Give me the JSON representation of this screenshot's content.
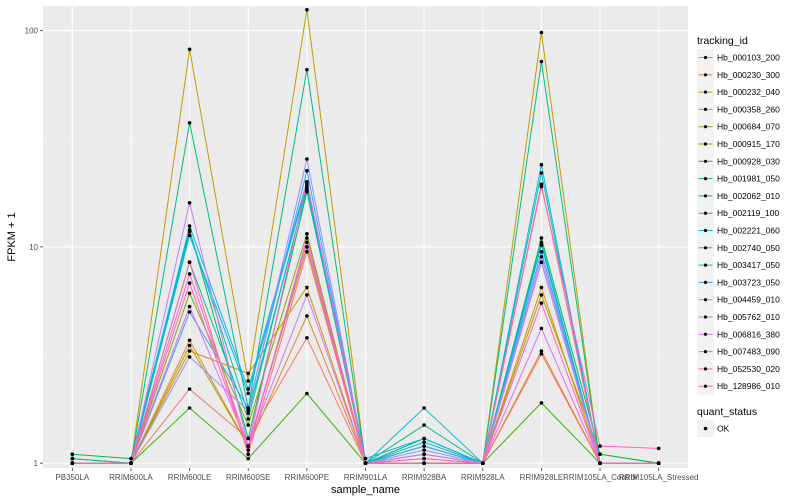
{
  "chart_data": {
    "type": "line",
    "xlabel": "sample_name",
    "ylabel": "FPKM + 1",
    "y_scale": "log10",
    "ylim": [
      0.95,
      130
    ],
    "y_ticks": [
      1,
      10,
      100
    ],
    "y_tick_labels": [
      "1",
      "10",
      "100"
    ],
    "grid": true,
    "legend_position": "right",
    "categories": [
      "PB350LA",
      "RRIM600LA",
      "RRIM600LE",
      "RRIM600SE",
      "RRIM600PE",
      "RRIM901LA",
      "RRIM928BA",
      "RRIM928LA",
      "RRIM928LE",
      "RRIM105LA_Control",
      "RRIM105LA_Stressed"
    ],
    "color_legend_title": "tracking_id",
    "series": [
      {
        "name": "Hb_000103_200",
        "color": "#F8766D",
        "values": [
          1.0,
          1.0,
          2.2,
          1.3,
          3.8,
          1.0,
          1.1,
          1.0,
          3.2,
          1.0,
          1.0
        ]
      },
      {
        "name": "Hb_000230_300",
        "color": "#EA8331",
        "values": [
          1.0,
          1.0,
          3.7,
          1.2,
          4.8,
          1.0,
          1.0,
          1.0,
          3.3,
          1.0,
          1.0
        ]
      },
      {
        "name": "Hb_000232_040",
        "color": "#D89000",
        "values": [
          1.0,
          1.0,
          3.3,
          2.6,
          6.5,
          1.0,
          1.0,
          1.0,
          6.5,
          1.0,
          1.0
        ]
      },
      {
        "name": "Hb_000358_260",
        "color": "#C09B00",
        "values": [
          1.0,
          1.0,
          82,
          2.4,
          125,
          1.0,
          1.0,
          1.0,
          98,
          1.0,
          1.0
        ]
      },
      {
        "name": "Hb_000684_070",
        "color": "#A3A500",
        "values": [
          1.05,
          1.0,
          3.5,
          1.2,
          10.0,
          1.0,
          1.0,
          1.0,
          6.0,
          1.1,
          1.0
        ]
      },
      {
        "name": "Hb_000915_170",
        "color": "#7CAE00",
        "values": [
          1.05,
          1.0,
          6.1,
          1.5,
          11.5,
          1.0,
          1.1,
          1.0,
          8.5,
          1.0,
          1.0
        ]
      },
      {
        "name": "Hb_000928_030",
        "color": "#39B600",
        "values": [
          1.0,
          1.0,
          1.8,
          1.05,
          2.1,
          1.0,
          1.0,
          1.0,
          1.9,
          1.0,
          1.0
        ]
      },
      {
        "name": "Hb_001981_050",
        "color": "#00BB4E",
        "values": [
          1.1,
          1.05,
          12.0,
          1.3,
          18.0,
          1.0,
          1.3,
          1.0,
          11.0,
          1.1,
          1.0
        ]
      },
      {
        "name": "Hb_002062_010",
        "color": "#00BF7D",
        "values": [
          1.0,
          1.0,
          37.5,
          1.8,
          66,
          1.0,
          1.5,
          1.0,
          72,
          1.0,
          1.0
        ]
      },
      {
        "name": "Hb_002119_100",
        "color": "#00C1A3",
        "values": [
          1.05,
          1.0,
          8.5,
          1.6,
          19.0,
          1.0,
          1.2,
          1.0,
          10.5,
          1.0,
          1.0
        ]
      },
      {
        "name": "Hb_002221_060",
        "color": "#00BFC4",
        "values": [
          1.0,
          1.0,
          11.8,
          1.7,
          18.5,
          1.0,
          1.25,
          1.0,
          22,
          1.0,
          1.0
        ]
      },
      {
        "name": "Hb_002740_050",
        "color": "#00BAE0",
        "values": [
          1.0,
          1.0,
          12.5,
          2.2,
          20,
          1.0,
          1.8,
          1.0,
          24,
          1.0,
          1.0
        ]
      },
      {
        "name": "Hb_003417_050",
        "color": "#00B0F6",
        "values": [
          1.0,
          1.0,
          11.3,
          2.1,
          19.5,
          1.05,
          1.3,
          1.0,
          10.2,
          1.0,
          1.0
        ]
      },
      {
        "name": "Hb_003723_050",
        "color": "#35A2FF",
        "values": [
          1.0,
          1.0,
          5.0,
          1.8,
          22.5,
          1.0,
          1.2,
          1.0,
          9.5,
          1.0,
          1.0
        ]
      },
      {
        "name": "Hb_004459_010",
        "color": "#9590FF",
        "values": [
          1.0,
          1.0,
          3.1,
          1.75,
          25.5,
          1.0,
          1.15,
          1.0,
          9.0,
          1.0,
          1.0
        ]
      },
      {
        "name": "Hb_005762_010",
        "color": "#C77CFF",
        "values": [
          1.0,
          1.0,
          16.0,
          1.2,
          6.0,
          1.0,
          1.1,
          1.0,
          8.5,
          1.0,
          1.0
        ]
      },
      {
        "name": "Hb_006816_380",
        "color": "#E76BF3",
        "values": [
          1.0,
          1.0,
          5.3,
          1.2,
          10.5,
          1.0,
          1.05,
          1.0,
          4.2,
          1.0,
          1.0
        ]
      },
      {
        "name": "Hb_007483_090",
        "color": "#FA62DB",
        "values": [
          1.0,
          1.0,
          7.5,
          1.2,
          20.0,
          1.0,
          1.0,
          1.0,
          5.5,
          1.0,
          1.0
        ]
      },
      {
        "name": "Hb_052530_020",
        "color": "#FF62BC",
        "values": [
          1.0,
          1.0,
          6.8,
          1.15,
          11.0,
          1.0,
          1.05,
          1.0,
          19.0,
          1.2,
          1.17
        ]
      },
      {
        "name": "Hb_128986_010",
        "color": "#FF6C91",
        "values": [
          1.0,
          1.0,
          8.5,
          1.1,
          9.5,
          1.0,
          1.0,
          1.0,
          19.5,
          1.0,
          1.0
        ]
      }
    ],
    "shape_legend": {
      "title": "quant_status",
      "items": [
        "OK"
      ]
    }
  }
}
